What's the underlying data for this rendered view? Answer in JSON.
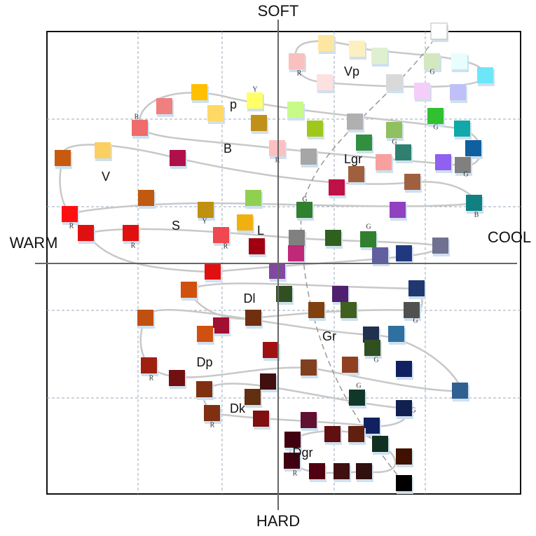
{
  "axes": {
    "top": "SOFT",
    "bottom": "HARD",
    "left": "WARM",
    "right": "COOL"
  },
  "tones": [
    "Vp",
    "p",
    "B",
    "V",
    "Lgr",
    "S",
    "L",
    "Dl",
    "Gr",
    "Dp",
    "Dk",
    "Dgr"
  ],
  "hue_marks": [
    "R",
    "G",
    "R",
    "Y",
    "G",
    "G",
    "R",
    "G",
    "G",
    "B",
    "R",
    "R",
    "Y",
    "R",
    "G",
    "G",
    "G",
    "R",
    "G",
    "G",
    "R",
    "R"
  ]
}
